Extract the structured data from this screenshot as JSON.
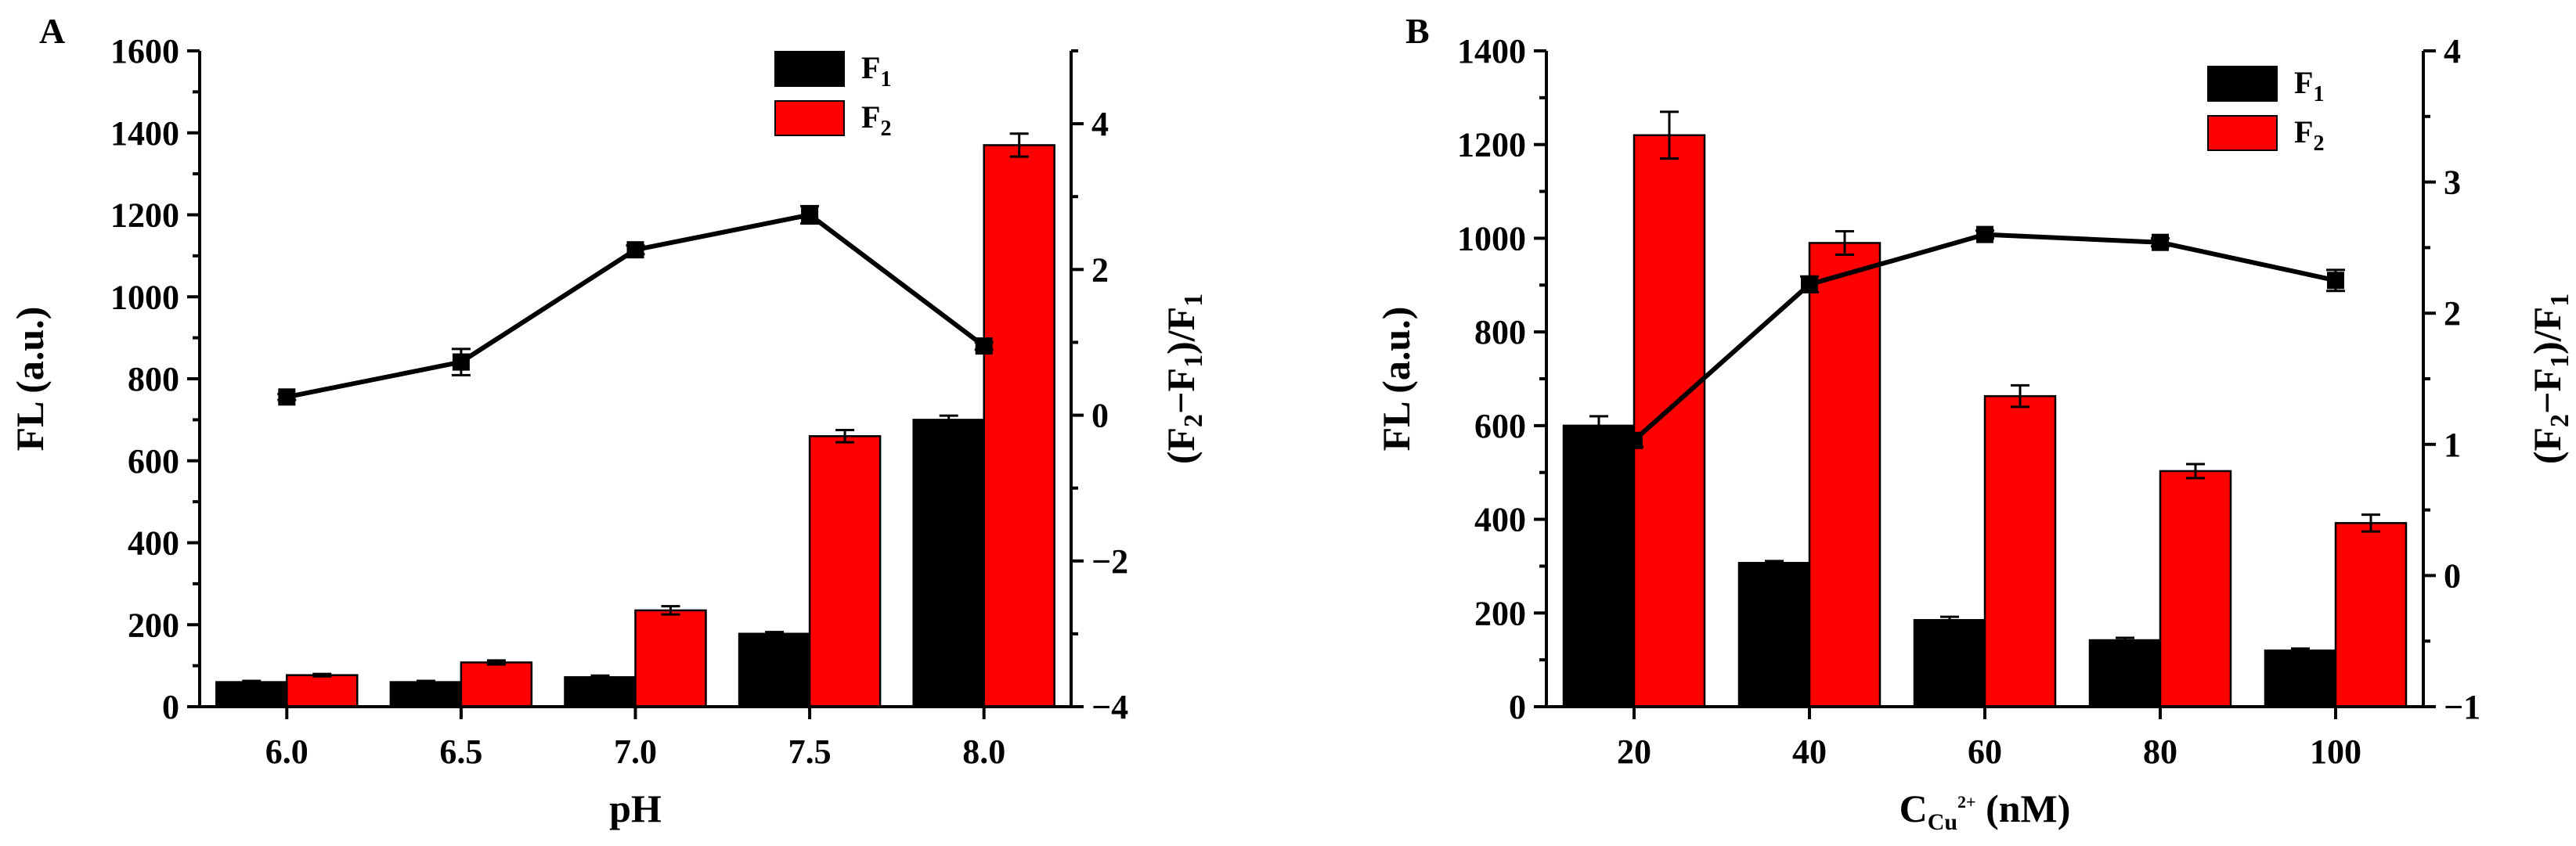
{
  "colors": {
    "f1": "#000000",
    "f2": "#ff0000",
    "axis": "#000000",
    "background": "#ffffff"
  },
  "chart_data": [
    {
      "panel": "A",
      "type": "bar",
      "xlabel": "pH",
      "ylabel": "FL (a.u.)",
      "y2label_parts": [
        "(F",
        "2",
        "−F",
        "1",
        ")/F",
        "1"
      ],
      "categories": [
        "6.0",
        "6.5",
        "7.0",
        "7.5",
        "8.0"
      ],
      "ylim": [
        0,
        1600
      ],
      "yticks": [
        0,
        200,
        400,
        600,
        800,
        1000,
        1200,
        1400,
        1600
      ],
      "y2lim": [
        -4,
        5
      ],
      "y2ticks": [
        -4,
        -2,
        0,
        2,
        4
      ],
      "legend": [
        {
          "label": "F",
          "sub": "1",
          "color": "#000000"
        },
        {
          "label": "F",
          "sub": "2",
          "color": "#ff0000"
        }
      ],
      "series": [
        {
          "name": "F1",
          "values": [
            60,
            60,
            72,
            178,
            700
          ],
          "errors": [
            3,
            3,
            4,
            4,
            10
          ]
        },
        {
          "name": "F2",
          "values": [
            77,
            108,
            235,
            660,
            1370
          ],
          "errors": [
            3,
            5,
            10,
            15,
            28
          ]
        }
      ],
      "ratio": {
        "name": "(F2-F1)/F1",
        "values": [
          0.25,
          0.73,
          2.27,
          2.75,
          0.95
        ],
        "errors": [
          0.04,
          0.18,
          0.06,
          0.12,
          0.05
        ]
      }
    },
    {
      "panel": "B",
      "type": "bar",
      "xlabel_parts": [
        "C",
        "Cu",
        "2+",
        " (nM)"
      ],
      "ylabel": "FL (a.u.)",
      "y2label_parts": [
        "(F",
        "2",
        "−F",
        "1",
        ")/F",
        "1"
      ],
      "categories": [
        "20",
        "40",
        "60",
        "80",
        "100"
      ],
      "ylim": [
        0,
        1400
      ],
      "yticks": [
        0,
        200,
        400,
        600,
        800,
        1000,
        1200,
        1400
      ],
      "y2lim": [
        -1,
        4
      ],
      "y2ticks": [
        -1,
        0,
        1,
        2,
        3,
        4
      ],
      "legend": [
        {
          "label": "F",
          "sub": "1",
          "color": "#000000"
        },
        {
          "label": "F",
          "sub": "2",
          "color": "#ff0000"
        }
      ],
      "series": [
        {
          "name": "F1",
          "values": [
            600,
            307,
            185,
            142,
            120
          ],
          "errors": [
            20,
            4,
            7,
            5,
            4
          ]
        },
        {
          "name": "F2",
          "values": [
            1220,
            990,
            663,
            503,
            392
          ],
          "errors": [
            50,
            25,
            23,
            15,
            18
          ]
        }
      ],
      "ratio": {
        "name": "(F2-F1)/F1",
        "values": [
          1.03,
          2.22,
          2.6,
          2.54,
          2.25
        ],
        "errors": [
          0.05,
          0.06,
          0.03,
          0.03,
          0.08
        ]
      }
    }
  ]
}
